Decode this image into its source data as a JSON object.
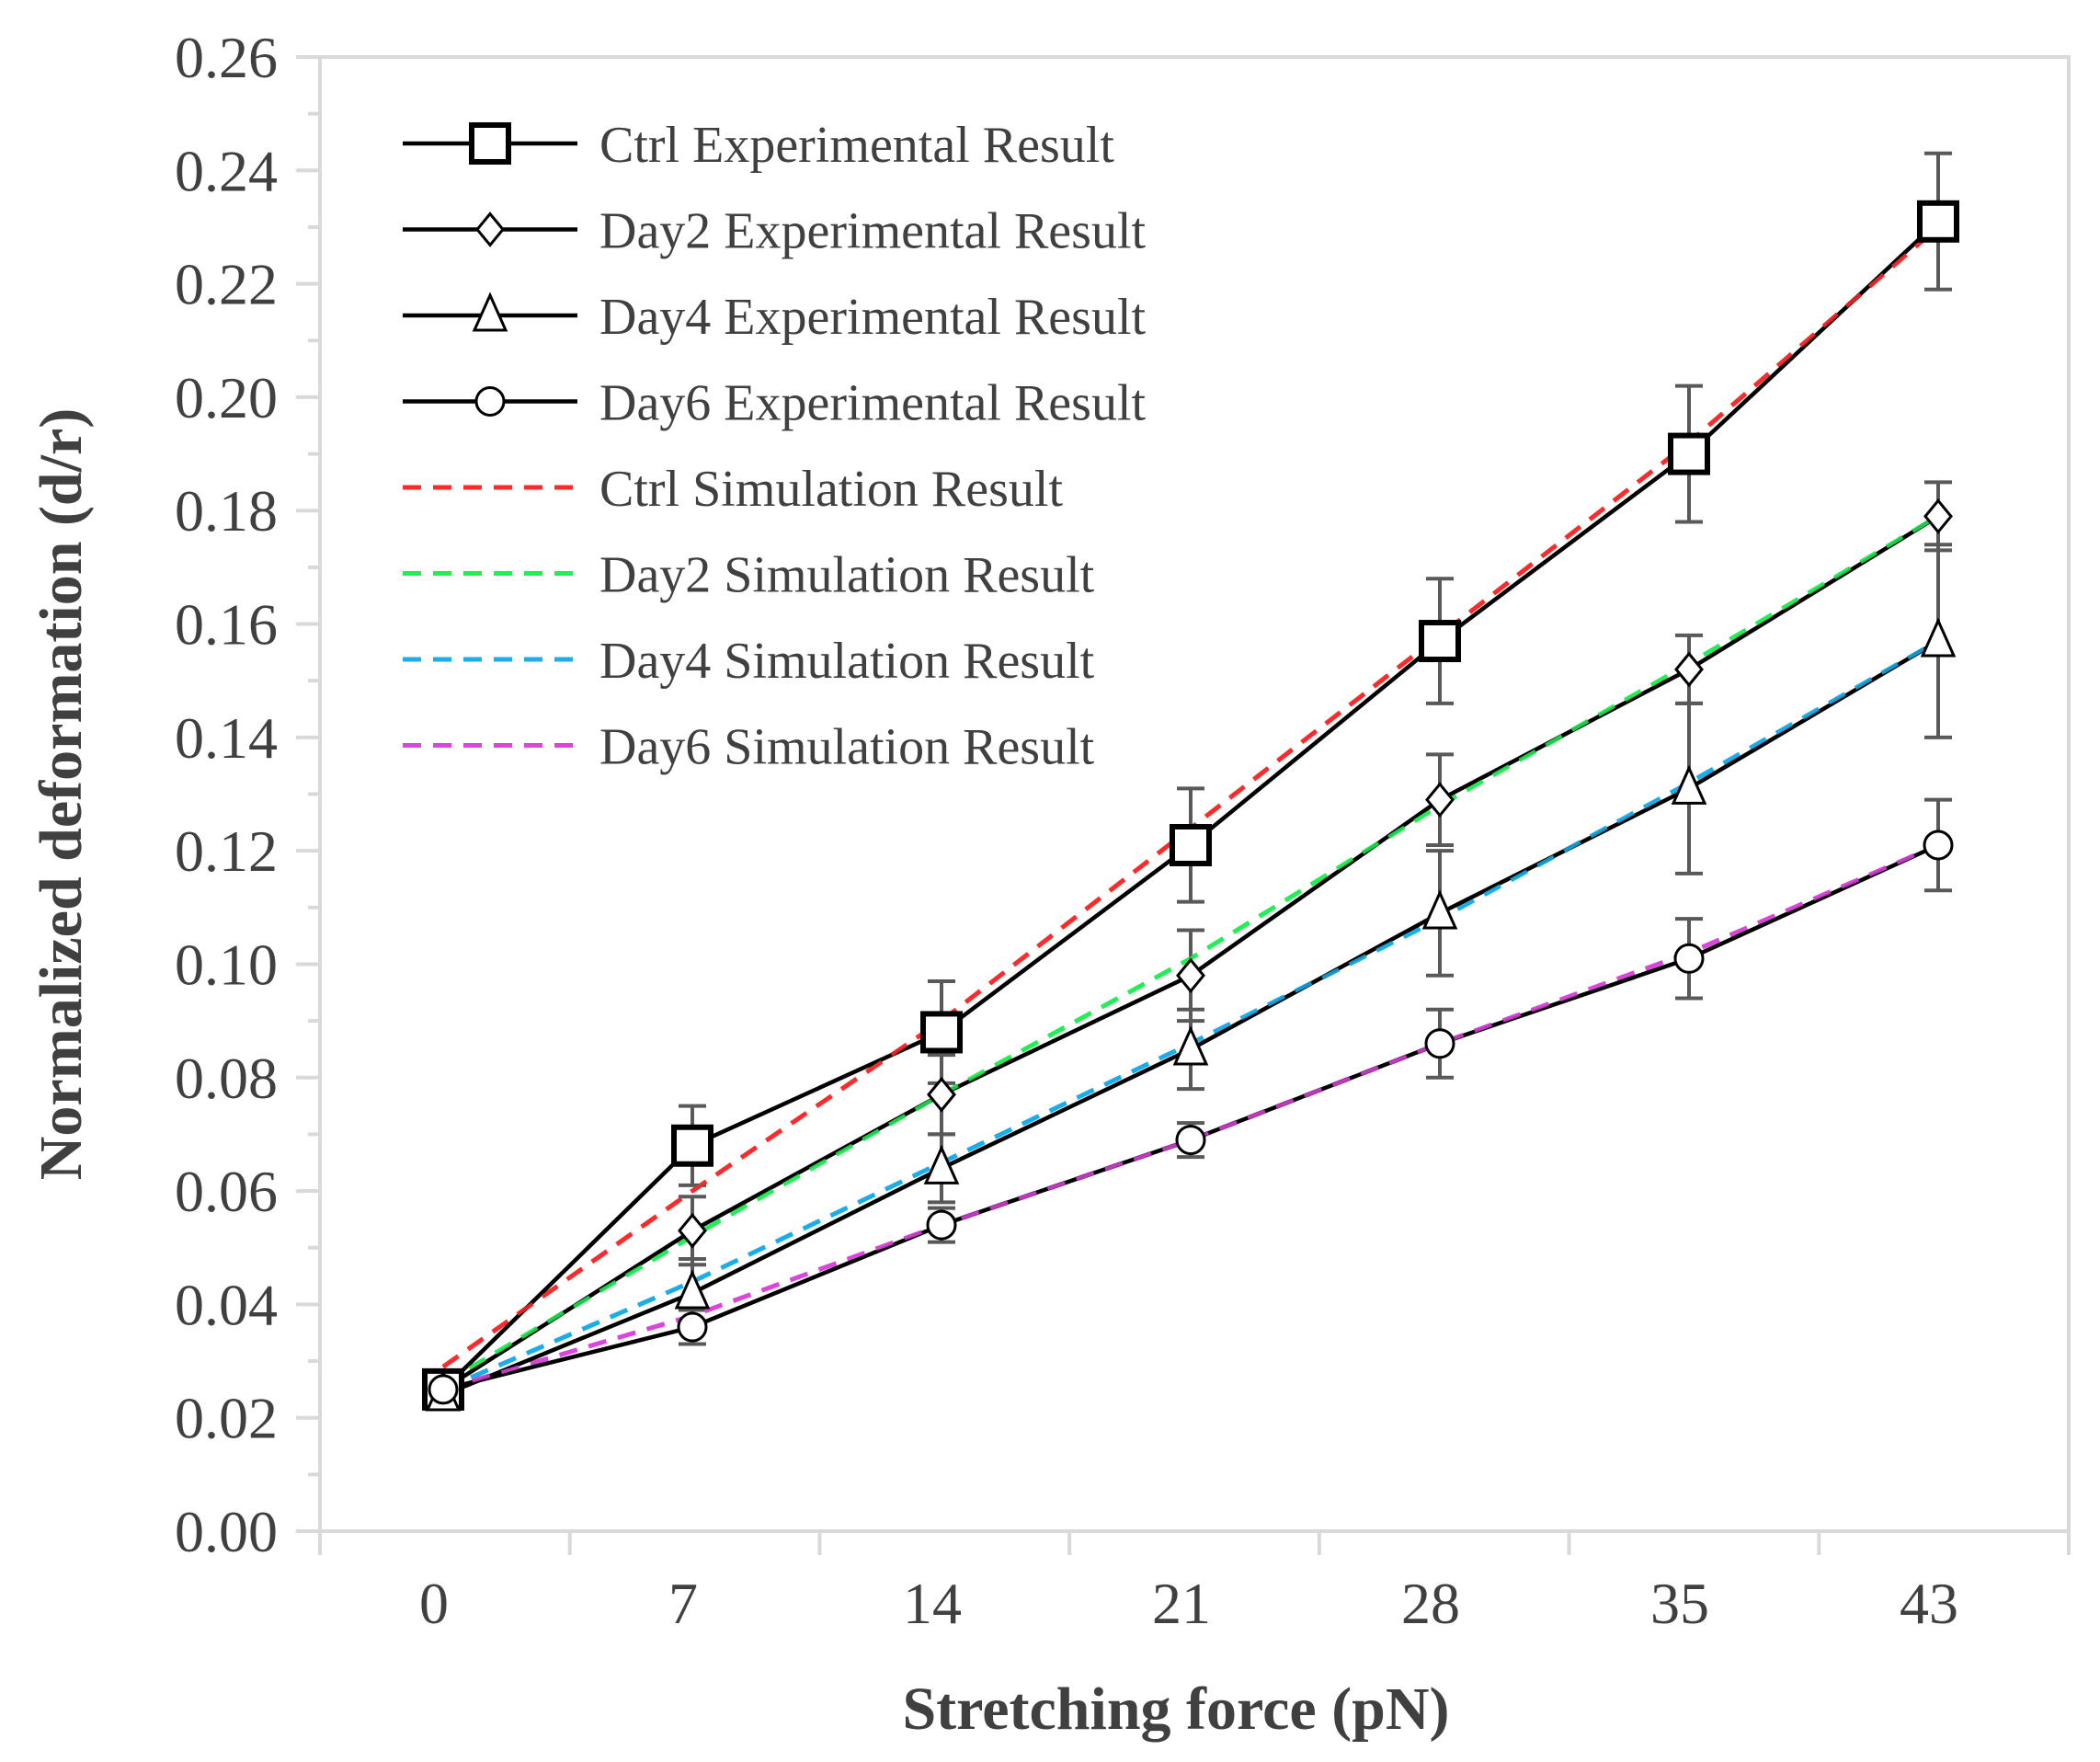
{
  "chart_data": {
    "type": "line",
    "title": "",
    "xlabel": "Stretching force (pN)",
    "ylabel": "Normalized deformation (d/r)",
    "categories": [
      "0",
      "7",
      "14",
      "21",
      "28",
      "35",
      "43"
    ],
    "ylim": [
      0,
      0.26
    ],
    "yticks": [
      "0.00",
      "0.02",
      "0.04",
      "0.06",
      "0.08",
      "0.10",
      "0.12",
      "0.14",
      "0.16",
      "0.18",
      "0.20",
      "0.22",
      "0.24",
      "0.26"
    ],
    "grid": false,
    "legend_position": "top-left",
    "series": [
      {
        "name": "Ctrl Experimental Result",
        "kind": "experimental",
        "marker": "square",
        "color": "#000000",
        "values": [
          0.025,
          0.068,
          0.088,
          0.121,
          0.157,
          0.19,
          0.231
        ],
        "errors": [
          0.002,
          0.007,
          0.009,
          0.01,
          0.011,
          0.012,
          0.012
        ]
      },
      {
        "name": "Day2 Experimental Result",
        "kind": "experimental",
        "marker": "diamond",
        "color": "#000000",
        "values": [
          0.025,
          0.053,
          0.077,
          0.098,
          0.129,
          0.152,
          0.179
        ],
        "errors": [
          0.002,
          0.006,
          0.007,
          0.008,
          0.008,
          0.006,
          0.006
        ]
      },
      {
        "name": "Day4 Experimental Result",
        "kind": "experimental",
        "marker": "triangle",
        "color": "#000000",
        "values": [
          0.024,
          0.042,
          0.064,
          0.085,
          0.109,
          0.131,
          0.157
        ],
        "errors": [
          0.002,
          0.006,
          0.006,
          0.007,
          0.011,
          0.015,
          0.017
        ]
      },
      {
        "name": "Day6 Experimental Result",
        "kind": "experimental",
        "marker": "circle",
        "color": "#000000",
        "values": [
          0.025,
          0.036,
          0.054,
          0.069,
          0.086,
          0.101,
          0.121
        ],
        "errors": [
          0.002,
          0.003,
          0.003,
          0.003,
          0.006,
          0.007,
          0.008
        ]
      },
      {
        "name": "Ctrl Simulation Result",
        "kind": "simulation",
        "color": "#ff2a2a",
        "values": [
          0.029,
          0.06,
          0.09,
          0.124,
          0.158,
          0.192,
          0.23
        ]
      },
      {
        "name": "Day2 Simulation Result",
        "kind": "simulation",
        "color": "#22ee55",
        "values": [
          0.026,
          0.052,
          0.077,
          0.101,
          0.128,
          0.153,
          0.179
        ]
      },
      {
        "name": "Day4 Simulation Result",
        "kind": "simulation",
        "color": "#1aaeea",
        "values": [
          0.025,
          0.044,
          0.065,
          0.086,
          0.108,
          0.132,
          0.157
        ]
      },
      {
        "name": "Day6 Simulation Result",
        "kind": "simulation",
        "color": "#dd44dd",
        "values": [
          0.025,
          0.038,
          0.054,
          0.069,
          0.086,
          0.102,
          0.121
        ]
      }
    ]
  }
}
